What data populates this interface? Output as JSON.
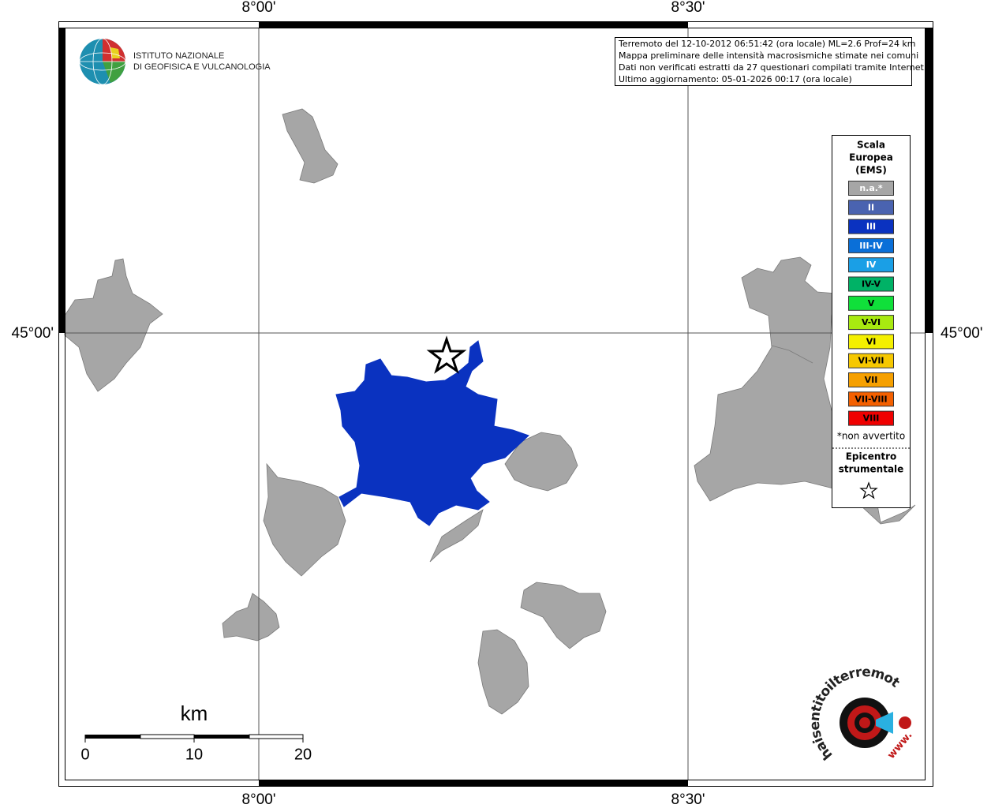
{
  "map": {
    "graticule": {
      "top": [
        "8°00'",
        "8°30'"
      ],
      "bottom": [
        "8°00'",
        "8°30'"
      ],
      "left": [
        "45°00'"
      ],
      "right": [
        "45°00'"
      ]
    },
    "logo": {
      "line1": "ISTITUTO NAZIONALE",
      "line2": "DI GEOFISICA E VULCANOLOGIA"
    },
    "info": [
      "Terremoto del 12-10-2012 06:51:42 (ora locale) ML=2.6 Prof=24 km",
      "Mappa preliminare delle intensità macrosismiche stimate nei comuni",
      "Dati non verificati estratti da 27 questionari compilati tramite Internet.",
      "Ultimo aggiornamento: 05-01-2026 00:17 (ora locale)"
    ],
    "legend": {
      "title": [
        "Scala",
        "Europea",
        "(EMS)"
      ],
      "items": [
        {
          "label": "n.a.*",
          "color": "#a6a6a6",
          "text_color": "#ffffff"
        },
        {
          "label": "II",
          "color": "#4a63b0",
          "text_color": "#ffffff"
        },
        {
          "label": "III",
          "color": "#0a32c0",
          "text_color": "#ffffff"
        },
        {
          "label": "III-IV",
          "color": "#0a6fd8",
          "text_color": "#ffffff"
        },
        {
          "label": "IV",
          "color": "#1a9fe6",
          "text_color": "#ffffff"
        },
        {
          "label": "IV-V",
          "color": "#00b266",
          "text_color": "#000000"
        },
        {
          "label": "V",
          "color": "#10e03a",
          "text_color": "#000000"
        },
        {
          "label": "V-VI",
          "color": "#a8ea10",
          "text_color": "#000000"
        },
        {
          "label": "VI",
          "color": "#f4f000",
          "text_color": "#000000"
        },
        {
          "label": "VI-VII",
          "color": "#f6c800",
          "text_color": "#000000"
        },
        {
          "label": "VII",
          "color": "#f6a000",
          "text_color": "#000000"
        },
        {
          "label": "VII-VIII",
          "color": "#f46000",
          "text_color": "#000000"
        },
        {
          "label": "VIII",
          "color": "#f00000",
          "text_color": "#000000"
        }
      ],
      "note": "*non avvertito",
      "epicenter": [
        "Epicentro",
        "strumentale"
      ]
    },
    "scale_bar": {
      "unit": "km",
      "ticks": [
        "0",
        "10",
        "20"
      ]
    },
    "watermark": {
      "prefix": "www.",
      "site": "haisentitoilterremoto.it"
    }
  }
}
